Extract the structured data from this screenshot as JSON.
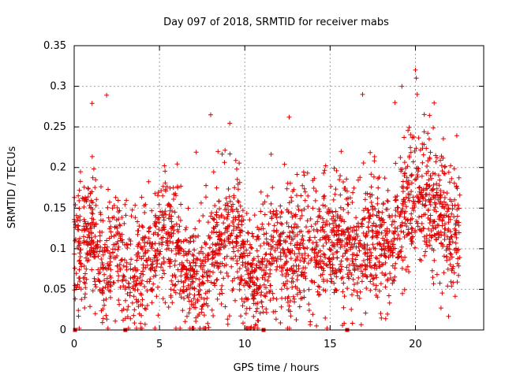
{
  "chart_data": {
    "type": "scatter",
    "title": "Day 097 of 2018, SRMTID for receiver mabs",
    "xlabel": "GPS time / hours",
    "ylabel": "SRMTID / TECUs",
    "xlim": [
      0,
      24
    ],
    "ylim": [
      0,
      0.35
    ],
    "xticks": [
      0,
      5,
      10,
      15,
      20
    ],
    "yticks": [
      0,
      0.05,
      0.1,
      0.15,
      0.2,
      0.25,
      0.3,
      0.35
    ],
    "xtick_labels": [
      "0",
      "5",
      "10",
      "15",
      "20"
    ],
    "ytick_labels": [
      "0",
      "0.05",
      "0.1",
      "0.15",
      "0.2",
      "0.25",
      "0.3",
      "0.35"
    ],
    "grid": true,
    "marker": "plus",
    "color": "#dd0000",
    "seed": 97,
    "n_points_approx": 2600,
    "point_time_range_hours": [
      0.0,
      22.6
    ],
    "gap_markers_x": [
      0.05,
      3.0,
      11.1,
      16.0
    ],
    "trend": [
      {
        "x": 0.0,
        "y": 0.1
      },
      {
        "x": 1.0,
        "y": 0.12
      },
      {
        "x": 1.7,
        "y": 0.06
      },
      {
        "x": 2.5,
        "y": 0.1
      },
      {
        "x": 3.3,
        "y": 0.06
      },
      {
        "x": 4.3,
        "y": 0.09
      },
      {
        "x": 5.3,
        "y": 0.13
      },
      {
        "x": 6.5,
        "y": 0.08
      },
      {
        "x": 7.5,
        "y": 0.05
      },
      {
        "x": 8.3,
        "y": 0.1
      },
      {
        "x": 9.5,
        "y": 0.12
      },
      {
        "x": 10.5,
        "y": 0.05
      },
      {
        "x": 11.5,
        "y": 0.1
      },
      {
        "x": 12.5,
        "y": 0.09
      },
      {
        "x": 14.0,
        "y": 0.1
      },
      {
        "x": 15.5,
        "y": 0.11
      },
      {
        "x": 16.5,
        "y": 0.09
      },
      {
        "x": 17.5,
        "y": 0.11
      },
      {
        "x": 18.5,
        "y": 0.1
      },
      {
        "x": 19.5,
        "y": 0.16
      },
      {
        "x": 20.5,
        "y": 0.16
      },
      {
        "x": 21.5,
        "y": 0.14
      },
      {
        "x": 22.6,
        "y": 0.11
      }
    ],
    "peaks": [
      {
        "x": 1.05,
        "y": 0.279
      },
      {
        "x": 1.9,
        "y": 0.289
      },
      {
        "x": 8.0,
        "y": 0.265
      },
      {
        "x": 12.6,
        "y": 0.262
      },
      {
        "x": 16.9,
        "y": 0.29
      },
      {
        "x": 18.8,
        "y": 0.28
      },
      {
        "x": 20.0,
        "y": 0.32
      },
      {
        "x": 20.05,
        "y": 0.31
      },
      {
        "x": 20.1,
        "y": 0.29
      }
    ]
  }
}
